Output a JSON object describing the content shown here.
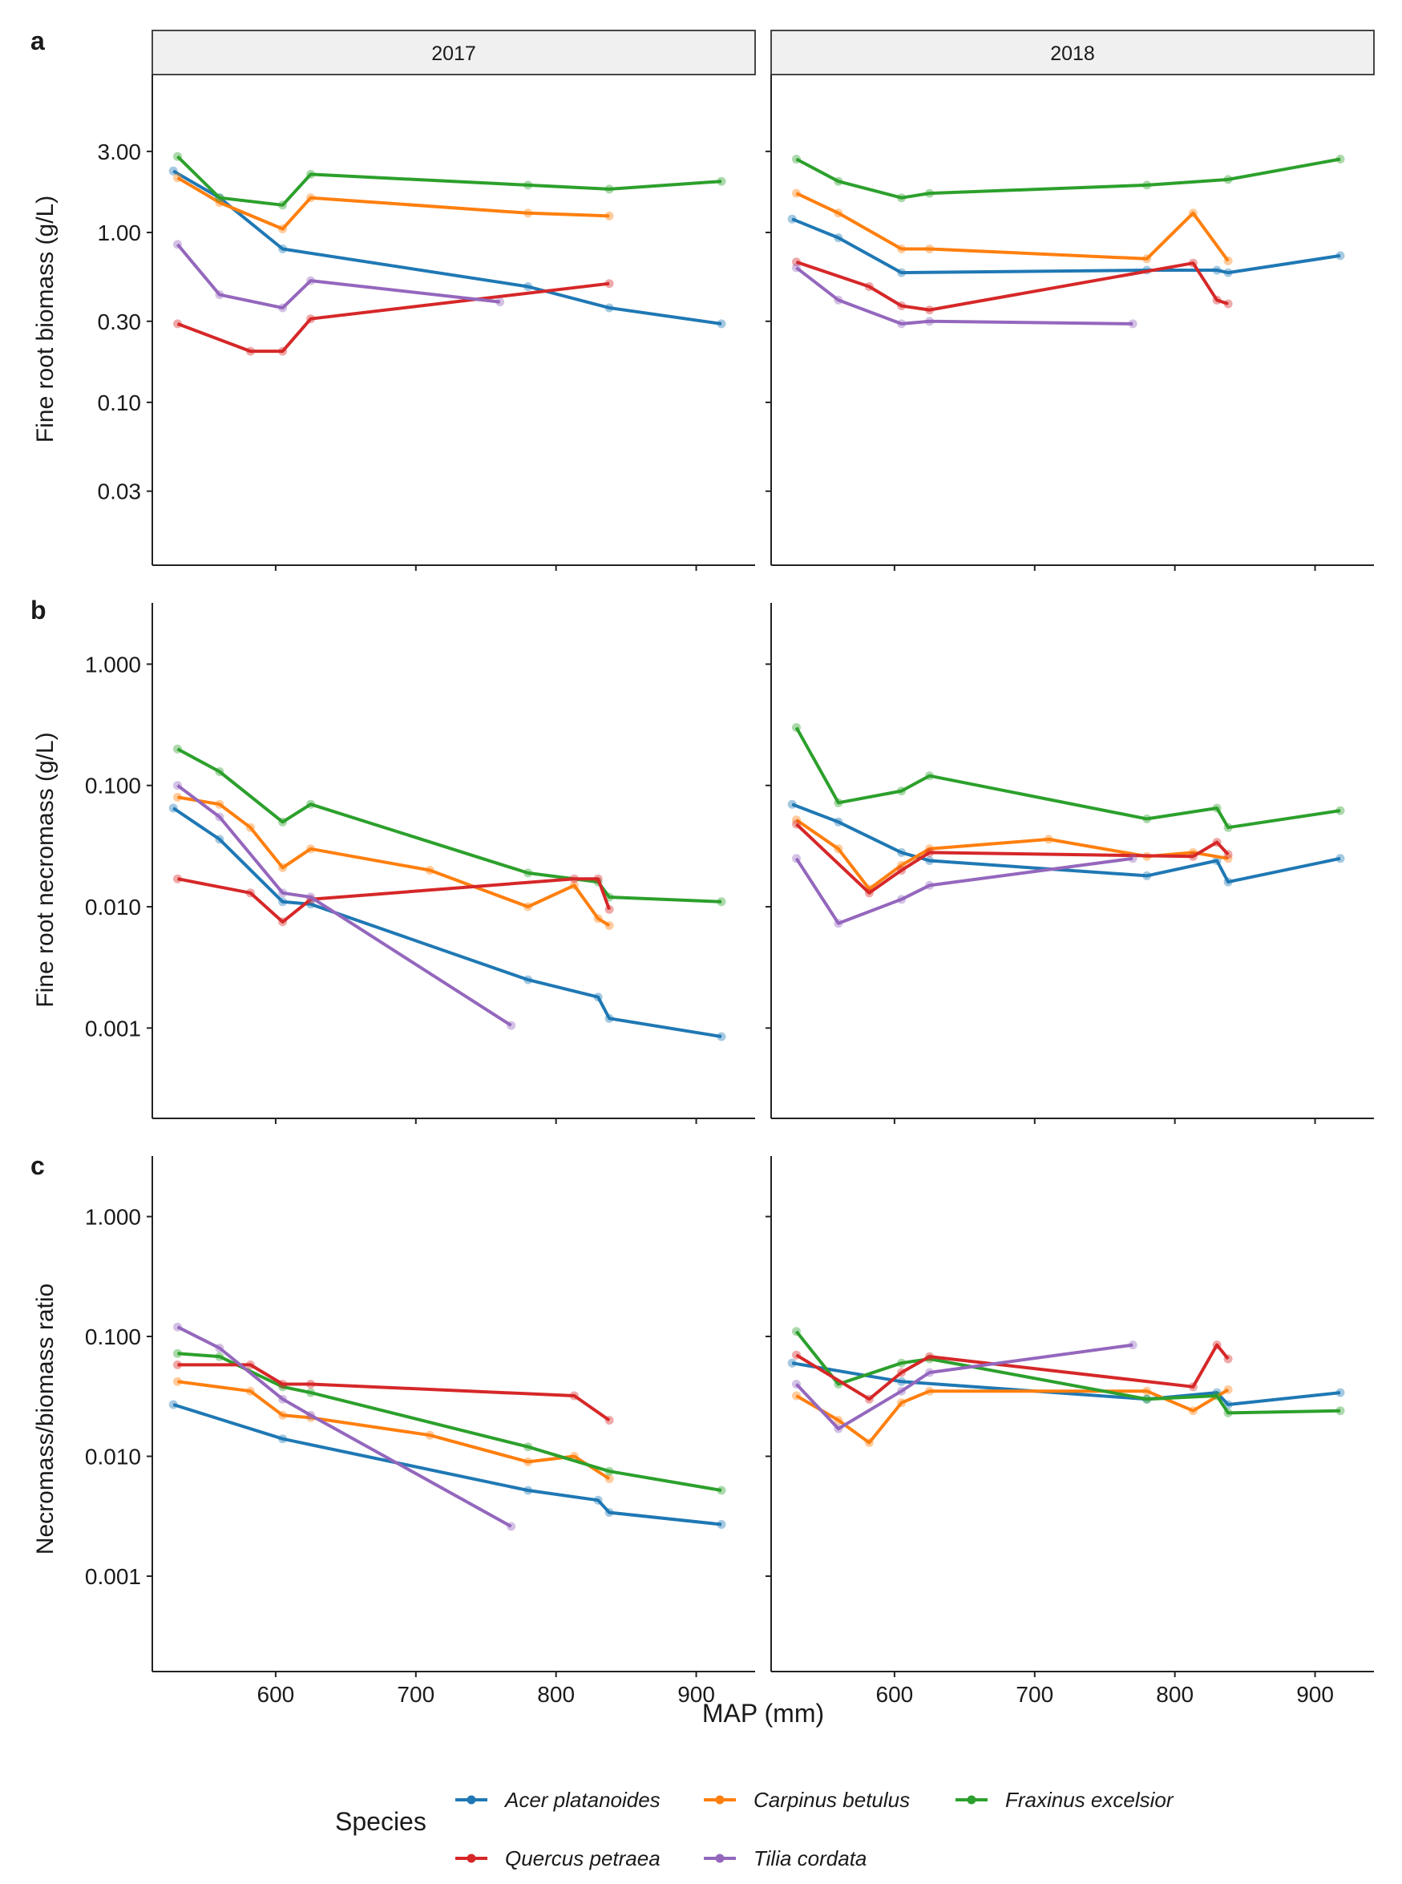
{
  "chart_data": {
    "type": "line",
    "scale": "log",
    "xlabel": "MAP (mm)",
    "xlim": [
      512,
      942
    ],
    "xticks": [
      600,
      700,
      800,
      900
    ],
    "facets": [
      "2017",
      "2018"
    ],
    "colors": {
      "Acer platanoides": "#1f78b4",
      "Carpinus betulus": "#ff7f0e",
      "Fraxinus excelsior": "#2ca02c",
      "Quercus petraea": "#d62728",
      "Tilia cordata": "#9467bd"
    },
    "legend": {
      "title": "Species",
      "position": "bottom",
      "entries": [
        "Acer platanoides",
        "Carpinus betulus",
        "Fraxinus excelsior",
        "Quercus petraea",
        "Tilia cordata"
      ]
    },
    "panels": [
      {
        "tag": "a",
        "ylabel": "Fine root biomass (g/L)",
        "ylim": [
          0.011,
          8.5
        ],
        "yticks": [
          0.03,
          0.1,
          0.3,
          1,
          3
        ],
        "yticklabels": [
          "0.03",
          "0.10",
          "0.30",
          "1.00",
          "3.00"
        ],
        "series": {
          "2017": {
            "Acer platanoides": [
              [
                527,
                2.3
              ],
              [
                560,
                1.6
              ],
              [
                605,
                0.8
              ],
              [
                780,
                0.48
              ],
              [
                838,
                0.36
              ],
              [
                918,
                0.29
              ]
            ],
            "Carpinus betulus": [
              [
                530,
                2.1
              ],
              [
                560,
                1.5
              ],
              [
                605,
                1.05
              ],
              [
                625,
                1.6
              ],
              [
                780,
                1.3
              ],
              [
                838,
                1.25
              ]
            ],
            "Fraxinus excelsior": [
              [
                530,
                2.8
              ],
              [
                560,
                1.6
              ],
              [
                605,
                1.45
              ],
              [
                625,
                2.2
              ],
              [
                780,
                1.9
              ],
              [
                838,
                1.8
              ],
              [
                918,
                2.0
              ]
            ],
            "Quercus petraea": [
              [
                530,
                0.29
              ],
              [
                582,
                0.2
              ],
              [
                605,
                0.2
              ],
              [
                625,
                0.31
              ],
              [
                838,
                0.5
              ]
            ],
            "Tilia cordata": [
              [
                530,
                0.85
              ],
              [
                560,
                0.43
              ],
              [
                605,
                0.36
              ],
              [
                625,
                0.52
              ],
              [
                760,
                0.39
              ]
            ]
          },
          "2018": {
            "Acer platanoides": [
              [
                527,
                1.2
              ],
              [
                560,
                0.93
              ],
              [
                605,
                0.58
              ],
              [
                780,
                0.6
              ],
              [
                830,
                0.6
              ],
              [
                838,
                0.58
              ],
              [
                918,
                0.73
              ]
            ],
            "Carpinus betulus": [
              [
                530,
                1.7
              ],
              [
                560,
                1.3
              ],
              [
                605,
                0.8
              ],
              [
                625,
                0.8
              ],
              [
                780,
                0.7
              ],
              [
                813,
                1.3
              ],
              [
                838,
                0.68
              ]
            ],
            "Fraxinus excelsior": [
              [
                530,
                2.7
              ],
              [
                560,
                2.0
              ],
              [
                605,
                1.6
              ],
              [
                625,
                1.7
              ],
              [
                780,
                1.9
              ],
              [
                838,
                2.05
              ],
              [
                918,
                2.7
              ]
            ],
            "Quercus petraea": [
              [
                530,
                0.67
              ],
              [
                582,
                0.48
              ],
              [
                605,
                0.37
              ],
              [
                625,
                0.35
              ],
              [
                813,
                0.66
              ],
              [
                830,
                0.4
              ],
              [
                838,
                0.38
              ]
            ],
            "Tilia cordata": [
              [
                530,
                0.62
              ],
              [
                560,
                0.4
              ],
              [
                605,
                0.29
              ],
              [
                625,
                0.3
              ],
              [
                770,
                0.29
              ]
            ]
          }
        }
      },
      {
        "tag": "b",
        "ylabel": "Fine root necromass (g/L)",
        "ylim": [
          0.00018,
          3.2
        ],
        "yticks": [
          0.001,
          0.01,
          0.1,
          1
        ],
        "yticklabels": [
          "0.001",
          "0.010",
          "0.100",
          "1.000"
        ],
        "series": {
          "2017": {
            "Acer platanoides": [
              [
                527,
                0.065
              ],
              [
                560,
                0.036
              ],
              [
                605,
                0.011
              ],
              [
                625,
                0.0105
              ],
              [
                780,
                0.0025
              ],
              [
                830,
                0.0018
              ],
              [
                838,
                0.0012
              ],
              [
                918,
                0.00085
              ]
            ],
            "Carpinus betulus": [
              [
                530,
                0.08
              ],
              [
                560,
                0.07
              ],
              [
                582,
                0.045
              ],
              [
                605,
                0.021
              ],
              [
                625,
                0.03
              ],
              [
                710,
                0.02
              ],
              [
                780,
                0.01
              ],
              [
                813,
                0.015
              ],
              [
                830,
                0.008
              ],
              [
                838,
                0.007
              ]
            ],
            "Fraxinus excelsior": [
              [
                530,
                0.2
              ],
              [
                560,
                0.13
              ],
              [
                605,
                0.05
              ],
              [
                625,
                0.07
              ],
              [
                780,
                0.019
              ],
              [
                830,
                0.016
              ],
              [
                838,
                0.012
              ],
              [
                918,
                0.011
              ]
            ],
            "Quercus petraea": [
              [
                530,
                0.017
              ],
              [
                582,
                0.013
              ],
              [
                605,
                0.0075
              ],
              [
                625,
                0.0115
              ],
              [
                813,
                0.017
              ],
              [
                830,
                0.017
              ],
              [
                838,
                0.0095
              ]
            ],
            "Tilia cordata": [
              [
                530,
                0.1
              ],
              [
                560,
                0.055
              ],
              [
                605,
                0.013
              ],
              [
                625,
                0.012
              ],
              [
                768,
                0.00105
              ]
            ]
          },
          "2018": {
            "Acer platanoides": [
              [
                527,
                0.07
              ],
              [
                560,
                0.05
              ],
              [
                605,
                0.028
              ],
              [
                625,
                0.024
              ],
              [
                780,
                0.018
              ],
              [
                830,
                0.024
              ],
              [
                838,
                0.016
              ],
              [
                918,
                0.025
              ]
            ],
            "Carpinus betulus": [
              [
                530,
                0.052
              ],
              [
                560,
                0.03
              ],
              [
                582,
                0.014
              ],
              [
                605,
                0.022
              ],
              [
                625,
                0.03
              ],
              [
                710,
                0.036
              ],
              [
                780,
                0.026
              ],
              [
                813,
                0.028
              ],
              [
                838,
                0.025
              ]
            ],
            "Fraxinus excelsior": [
              [
                530,
                0.3
              ],
              [
                560,
                0.072
              ],
              [
                605,
                0.09
              ],
              [
                625,
                0.12
              ],
              [
                780,
                0.053
              ],
              [
                830,
                0.065
              ],
              [
                838,
                0.045
              ],
              [
                918,
                0.062
              ]
            ],
            "Quercus petraea": [
              [
                530,
                0.048
              ],
              [
                582,
                0.013
              ],
              [
                605,
                0.02
              ],
              [
                625,
                0.028
              ],
              [
                813,
                0.026
              ],
              [
                830,
                0.034
              ],
              [
                838,
                0.027
              ]
            ],
            "Tilia cordata": [
              [
                530,
                0.025
              ],
              [
                560,
                0.0073
              ],
              [
                605,
                0.0115
              ],
              [
                625,
                0.015
              ],
              [
                770,
                0.025
              ]
            ]
          }
        }
      },
      {
        "tag": "c",
        "ylabel": "Necromass/biomass ratio",
        "ylim": [
          0.00016,
          3.2
        ],
        "yticks": [
          0.001,
          0.01,
          0.1,
          1
        ],
        "yticklabels": [
          "0.001",
          "0.010",
          "0.100",
          "1.000"
        ],
        "series": {
          "2017": {
            "Acer platanoides": [
              [
                527,
                0.027
              ],
              [
                605,
                0.014
              ],
              [
                780,
                0.0052
              ],
              [
                830,
                0.0043
              ],
              [
                838,
                0.0034
              ],
              [
                918,
                0.0027
              ]
            ],
            "Carpinus betulus": [
              [
                530,
                0.042
              ],
              [
                582,
                0.035
              ],
              [
                605,
                0.022
              ],
              [
                625,
                0.021
              ],
              [
                710,
                0.015
              ],
              [
                780,
                0.009
              ],
              [
                813,
                0.01
              ],
              [
                838,
                0.0065
              ]
            ],
            "Fraxinus excelsior": [
              [
                530,
                0.072
              ],
              [
                560,
                0.068
              ],
              [
                605,
                0.038
              ],
              [
                625,
                0.034
              ],
              [
                780,
                0.012
              ],
              [
                838,
                0.0075
              ],
              [
                918,
                0.0052
              ]
            ],
            "Quercus petraea": [
              [
                530,
                0.058
              ],
              [
                582,
                0.058
              ],
              [
                605,
                0.04
              ],
              [
                625,
                0.04
              ],
              [
                813,
                0.032
              ],
              [
                838,
                0.02
              ]
            ],
            "Tilia cordata": [
              [
                530,
                0.12
              ],
              [
                560,
                0.08
              ],
              [
                605,
                0.03
              ],
              [
                625,
                0.022
              ],
              [
                768,
                0.0026
              ]
            ]
          },
          "2018": {
            "Acer platanoides": [
              [
                527,
                0.06
              ],
              [
                605,
                0.042
              ],
              [
                780,
                0.03
              ],
              [
                830,
                0.034
              ],
              [
                838,
                0.027
              ],
              [
                918,
                0.034
              ]
            ],
            "Carpinus betulus": [
              [
                530,
                0.032
              ],
              [
                560,
                0.02
              ],
              [
                582,
                0.013
              ],
              [
                605,
                0.028
              ],
              [
                625,
                0.035
              ],
              [
                780,
                0.035
              ],
              [
                813,
                0.024
              ],
              [
                838,
                0.036
              ]
            ],
            "Fraxinus excelsior": [
              [
                530,
                0.11
              ],
              [
                560,
                0.04
              ],
              [
                605,
                0.06
              ],
              [
                625,
                0.065
              ],
              [
                780,
                0.03
              ],
              [
                830,
                0.032
              ],
              [
                838,
                0.023
              ],
              [
                918,
                0.024
              ]
            ],
            "Quercus petraea": [
              [
                530,
                0.07
              ],
              [
                582,
                0.03
              ],
              [
                605,
                0.05
              ],
              [
                625,
                0.068
              ],
              [
                813,
                0.038
              ],
              [
                830,
                0.085
              ],
              [
                838,
                0.065
              ]
            ],
            "Tilia cordata": [
              [
                530,
                0.04
              ],
              [
                560,
                0.017
              ],
              [
                605,
                0.035
              ],
              [
                625,
                0.05
              ],
              [
                770,
                0.085
              ]
            ]
          }
        }
      }
    ]
  }
}
